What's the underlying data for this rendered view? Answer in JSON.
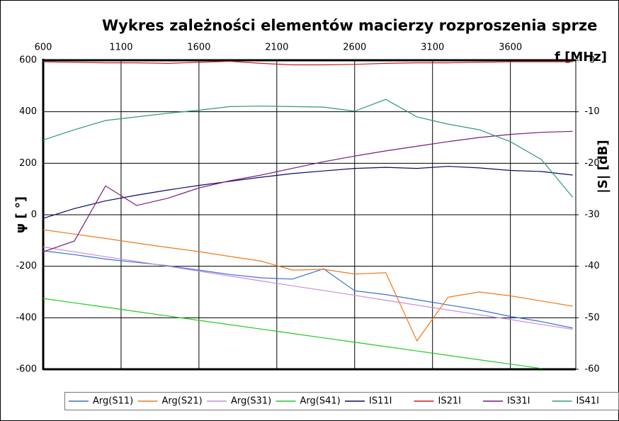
{
  "chart_data": {
    "type": "line",
    "title": "Wykres zależności elementów macierzy rozproszenia sprze",
    "x_label": "f [MHz]",
    "y_label": "ψ [ °]",
    "y2_label": "|S| [dB]",
    "x": [
      600,
      800,
      1000,
      1200,
      1400,
      1600,
      1800,
      2000,
      2200,
      2400,
      2600,
      2800,
      3000,
      3200,
      3400,
      3600,
      3800,
      4000
    ],
    "xlim": [
      600,
      4020
    ],
    "xticks": [
      600,
      1100,
      1600,
      2100,
      2600,
      3100,
      3600
    ],
    "ylim": [
      -600,
      600
    ],
    "yticks": [
      -600,
      -400,
      -200,
      0,
      200,
      400,
      600
    ],
    "y2lim": [
      -60,
      0
    ],
    "y2ticks": [
      -60,
      -50,
      -40,
      -30,
      -20,
      -10,
      0
    ],
    "grid": true,
    "legend": "bottom",
    "series": [
      {
        "name": "Arg(S11)",
        "color": "#3b6fd6",
        "values": [
          -140,
          -155,
          -172,
          -185,
          -198,
          -215,
          -232,
          -245,
          -250,
          -210,
          -295,
          -310,
          -330,
          -350,
          -370,
          -395,
          -415,
          -440
        ]
      },
      {
        "name": "Arg(S21)",
        "color": "#f07a1a",
        "values": [
          -58,
          -75,
          -92,
          -110,
          -127,
          -143,
          -162,
          -180,
          -215,
          -212,
          -230,
          -225,
          -490,
          -320,
          -300,
          -315,
          -335,
          -355
        ]
      },
      {
        "name": "Arg(S31)",
        "color": "#c98ee0",
        "values": [
          -125,
          -144,
          -163,
          -181,
          -200,
          -219,
          -238,
          -257,
          -276,
          -294,
          -313,
          -332,
          -351,
          -370,
          -388,
          -407,
          -426,
          -445
        ]
      },
      {
        "name": "Arg(S41)",
        "color": "#22cc22",
        "values": [
          -325,
          -342,
          -359,
          -376,
          -393,
          -410,
          -427,
          -444,
          -461,
          -478,
          -495,
          -512,
          -529,
          -546,
          -563,
          -580,
          -597,
          null
        ]
      },
      {
        "name": "IS11I",
        "color": "#0a0a6a",
        "axis": "y2",
        "values": [
          -30.7,
          -28.8,
          -27.3,
          -26.2,
          -25.2,
          -24.3,
          -23.5,
          -22.7,
          -22.0,
          -21.5,
          -21.0,
          -20.8,
          -21.0,
          -20.6,
          -20.9,
          -21.4,
          -21.6,
          -22.3
        ]
      },
      {
        "name": "IS21I",
        "color": "#cc1a1a",
        "axis": "y2",
        "values": [
          -0.3,
          -0.4,
          -0.5,
          -0.5,
          -0.6,
          -0.4,
          -0.2,
          -0.6,
          -0.9,
          -0.9,
          -0.8,
          -0.6,
          -0.5,
          -0.5,
          -0.4,
          -0.3,
          -0.3,
          -0.3
        ]
      },
      {
        "name": "IS31I",
        "color": "#7a1a80",
        "axis": "y2",
        "values": [
          -37.2,
          -35.1,
          -24.4,
          -28.2,
          -26.8,
          -24.8,
          -23.4,
          -22.3,
          -21.0,
          -19.7,
          -18.6,
          -17.6,
          -16.7,
          -15.8,
          -15.0,
          -14.4,
          -14.0,
          -13.8
        ]
      },
      {
        "name": "IS41I",
        "color": "#2e9a78",
        "axis": "y2",
        "values": [
          -15.5,
          -13.5,
          -11.7,
          -11.0,
          -10.3,
          -9.7,
          -9.0,
          -8.9,
          -9.0,
          -9.1,
          -9.9,
          -7.6,
          -11.0,
          -12.4,
          -13.5,
          -15.8,
          -19.3,
          -26.6
        ]
      }
    ]
  }
}
